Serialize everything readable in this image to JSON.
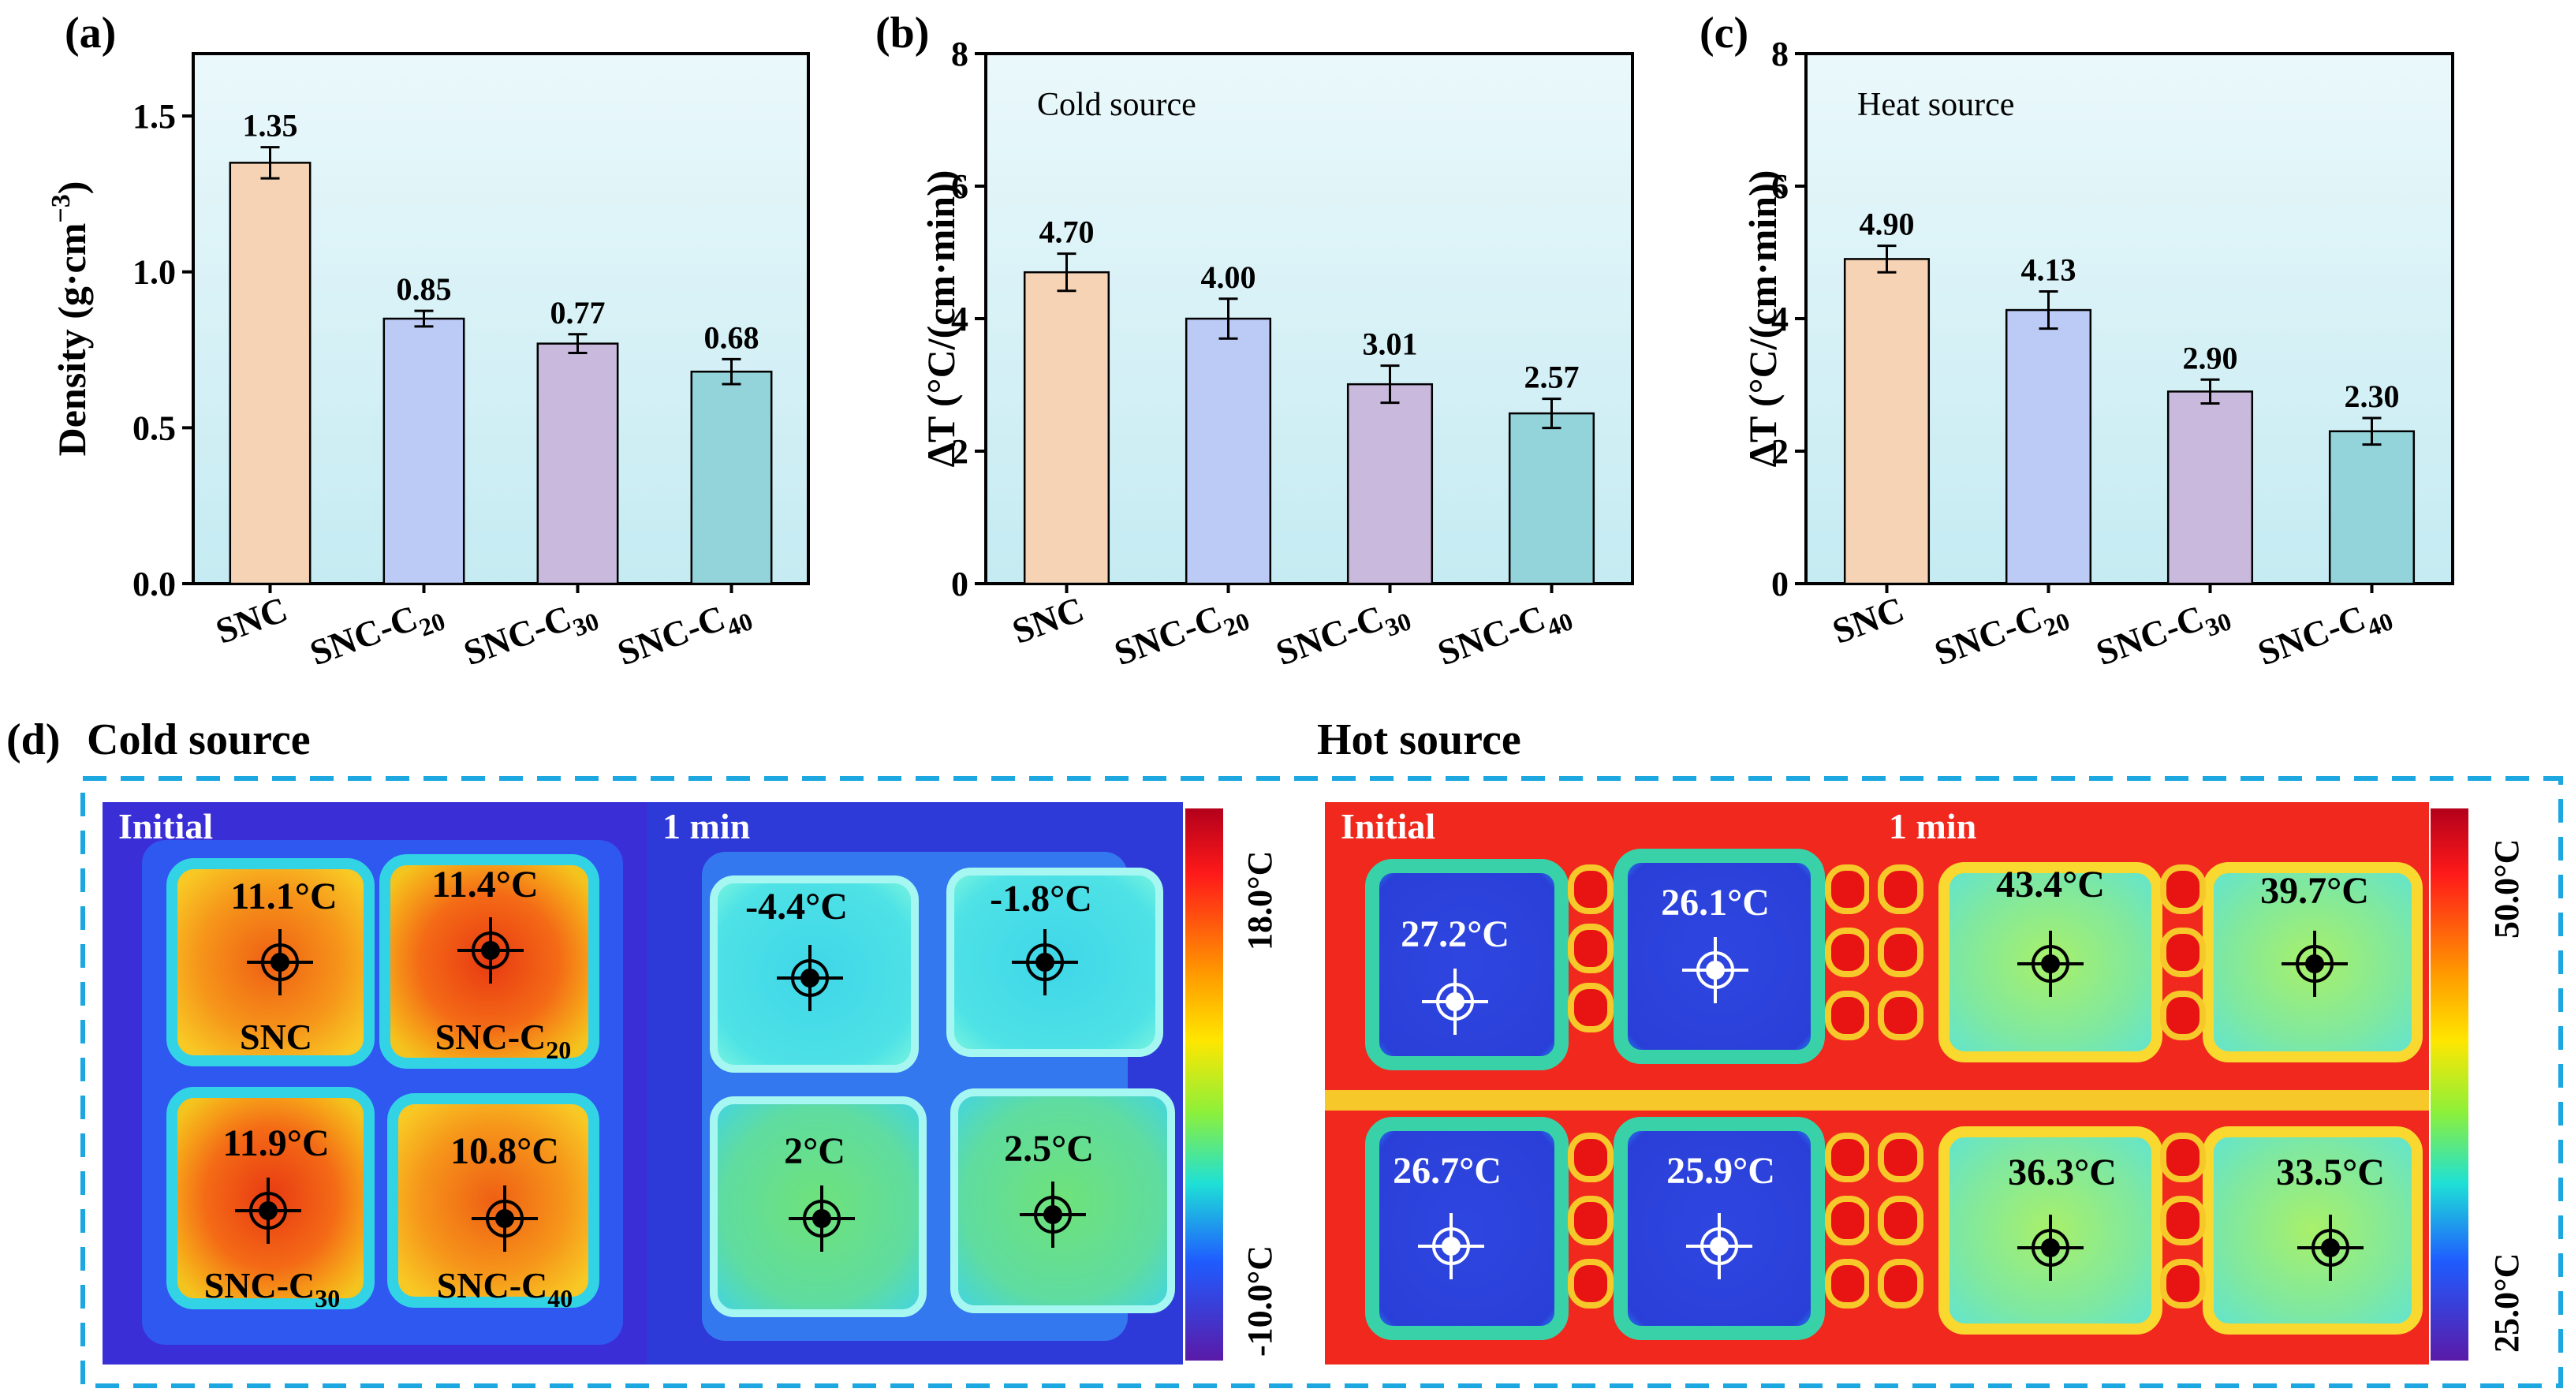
{
  "chart_data": [
    {
      "panel": "(a)",
      "type": "bar",
      "title": "",
      "ylabel": "Density (g·cm−3)",
      "ylabel_main": "Density (g·cm",
      "ylabel_sup": "−3",
      "ylabel_end": ")",
      "xlabel": "",
      "ylim": [
        0,
        1.7
      ],
      "yticks": [
        "0.0",
        "0.5",
        "1.0",
        "1.5"
      ],
      "ytick_values": [
        0.0,
        0.5,
        1.0,
        1.5
      ],
      "categories": [
        "SNC",
        "SNC-C20",
        "SNC-C30",
        "SNC-C40"
      ],
      "values": [
        1.35,
        0.85,
        0.77,
        0.68
      ],
      "value_labels": [
        "1.35",
        "0.85",
        "0.77",
        "0.68"
      ],
      "errors": [
        0.05,
        0.025,
        0.03,
        0.04
      ],
      "grid": false
    },
    {
      "panel": "(b)",
      "type": "bar",
      "title": "Cold source",
      "ylabel": "ΔT (°C/(cm·min))",
      "xlabel": "",
      "ylim": [
        0,
        8
      ],
      "yticks": [
        "0",
        "2",
        "4",
        "6",
        "8"
      ],
      "ytick_values": [
        0,
        2,
        4,
        6,
        8
      ],
      "categories": [
        "SNC",
        "SNC-C20",
        "SNC-C30",
        "SNC-C40"
      ],
      "values": [
        4.7,
        4.0,
        3.01,
        2.57
      ],
      "value_labels": [
        "4.70",
        "4.00",
        "3.01",
        "2.57"
      ],
      "errors": [
        0.28,
        0.3,
        0.28,
        0.22
      ],
      "grid": false
    },
    {
      "panel": "(c)",
      "type": "bar",
      "title": "Heat source",
      "ylabel": "ΔT (°C/(cm·min))",
      "xlabel": "",
      "ylim": [
        0,
        8
      ],
      "yticks": [
        "0",
        "2",
        "4",
        "6",
        "8"
      ],
      "ytick_values": [
        0,
        2,
        4,
        6,
        8
      ],
      "categories": [
        "SNC",
        "SNC-C20",
        "SNC-C30",
        "SNC-C40"
      ],
      "values": [
        4.9,
        4.13,
        2.9,
        2.3
      ],
      "value_labels": [
        "4.90",
        "4.13",
        "2.90",
        "2.30"
      ],
      "errors": [
        0.2,
        0.28,
        0.18,
        0.2
      ],
      "grid": false
    }
  ],
  "colors": {
    "plot_bg_top": "#e8f7fb",
    "plot_bg_bottom": "#c7ecf3",
    "bars": [
      "#f6d3b5",
      "#bccbf5",
      "#c9b9dc",
      "#93d4db"
    ],
    "dash_border": "#1ca7e0"
  },
  "category_parts": [
    {
      "main": "SNC",
      "sub": ""
    },
    {
      "main": "SNC-C",
      "sub": "20"
    },
    {
      "main": "SNC-C",
      "sub": "30"
    },
    {
      "main": "SNC-C",
      "sub": "40"
    }
  ],
  "panel_d": {
    "label": "(d)",
    "cold_title": "Cold source",
    "hot_title": "Hot source",
    "initial": "Initial",
    "one_min": "1 min",
    "cold_colorbar": {
      "max": "18.0°C",
      "min": "-10.0°C"
    },
    "hot_colorbar": {
      "max": "50.0°C",
      "min": "25.0°C"
    },
    "cold_initial_temps": [
      "11.1°C",
      "11.4°C",
      "11.9°C",
      "10.8°C"
    ],
    "cold_1min_temps": [
      "-4.4°C",
      "-1.8°C",
      "2°C",
      "2.5°C"
    ],
    "hot_initial_temps": [
      "27.2°C",
      "26.1°C",
      "26.7°C",
      "25.9°C"
    ],
    "hot_1min_temps": [
      "43.4°C",
      "39.7°C",
      "36.3°C",
      "33.5°C"
    ],
    "sample_labels": [
      {
        "main": "SNC",
        "sub": ""
      },
      {
        "main": "SNC-C",
        "sub": "20"
      },
      {
        "main": "SNC-C",
        "sub": "30"
      },
      {
        "main": "SNC-C",
        "sub": "40"
      }
    ]
  }
}
